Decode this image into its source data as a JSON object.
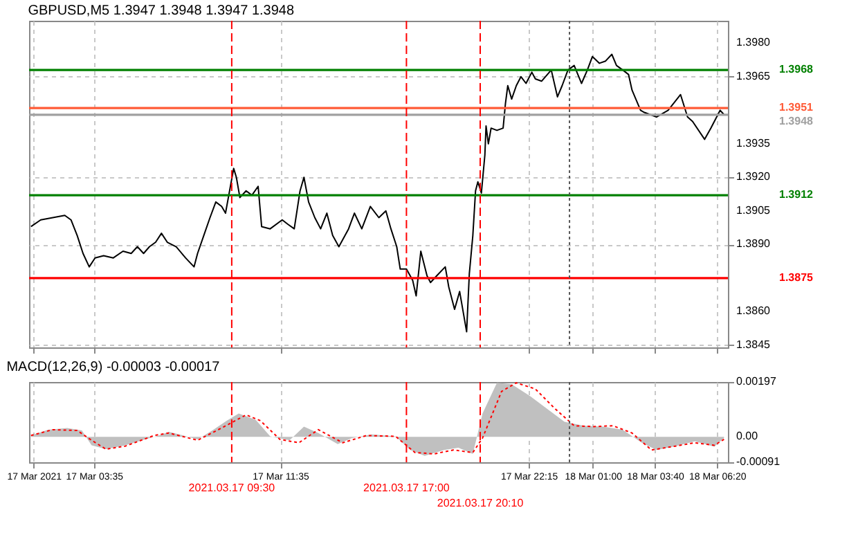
{
  "chart_data": [
    {
      "type": "line",
      "title": "GBPUSD,M5 1.3947 1.3948 1.3947 1.3948",
      "xlim": [
        "2021-03-17T00:48",
        "2021-03-18T06:48"
      ],
      "xticks": [
        {
          "value": "2021-03-17T01:00",
          "label": null
        },
        {
          "value": "2021-03-17T03:35",
          "label": null
        },
        {
          "value": "2021-03-17T11:35",
          "label": null
        },
        {
          "value": "2021-03-17T22:15",
          "label": null
        },
        {
          "value": "2021-03-18T01:00",
          "label": null
        },
        {
          "value": "2021-03-18T03:40",
          "label": null
        },
        {
          "value": "2021-03-18T06:20",
          "label": null
        }
      ],
      "ylim": [
        1.3844,
        1.399
      ],
      "yticks": [
        {
          "value": 1.398,
          "label": "1.3980"
        },
        {
          "value": 1.3965,
          "label": "1.3965"
        },
        {
          "value": 1.3935,
          "label": "1.3935"
        },
        {
          "value": 1.392,
          "label": "1.3920"
        },
        {
          "value": 1.3905,
          "label": "1.3905"
        },
        {
          "value": 1.389,
          "label": "1.3890"
        },
        {
          "value": 1.386,
          "label": "1.3860"
        },
        {
          "value": 1.3845,
          "label": "1.3845"
        }
      ],
      "grid": true,
      "tick_labels": "y",
      "ref_lines": [
        {
          "axis": "y",
          "value": 1.3968,
          "label": "1.3968",
          "color": "#008000",
          "line_style": "solid"
        },
        {
          "axis": "y",
          "value": 1.3951,
          "label": "1.3951",
          "color": "#ff5a36",
          "line_style": "solid"
        },
        {
          "axis": "y",
          "value": 1.3948,
          "label": "1.3948",
          "color": "#a0a0a0",
          "line_style": "solid"
        },
        {
          "axis": "y",
          "value": 1.3912,
          "label": "1.3912",
          "color": "#008000",
          "line_style": "solid"
        },
        {
          "axis": "y",
          "value": 1.3875,
          "label": "1.3875",
          "color": "#ff0000",
          "line_style": "solid"
        },
        {
          "axis": "x",
          "value": "2021-03-17T09:30",
          "color": "#ff0000",
          "line_style": "dashed"
        },
        {
          "axis": "x",
          "value": "2021-03-17T17:00",
          "color": "#ff0000",
          "line_style": "dashed"
        },
        {
          "axis": "x",
          "value": "2021-03-17T20:10",
          "color": "#ff0000",
          "line_style": "dashed"
        },
        {
          "axis": "x",
          "value": "2021-03-18T00:00",
          "color": "#555555",
          "line_style": "dotted"
        }
      ],
      "series": [
        {
          "color": "#000000",
          "x": [
            "2021-03-17T00:53",
            "2021-03-17T01:18",
            "2021-03-17T01:49",
            "2021-03-17T02:20",
            "2021-03-17T02:36",
            "2021-03-17T02:52",
            "2021-03-17T03:07",
            "2021-03-17T03:23",
            "2021-03-17T03:38",
            "2021-03-17T04:00",
            "2021-03-17T04:25",
            "2021-03-17T04:50",
            "2021-03-17T05:11",
            "2021-03-17T05:27",
            "2021-03-17T05:43",
            "2021-03-17T05:58",
            "2021-03-17T06:14",
            "2021-03-17T06:29",
            "2021-03-17T06:44",
            "2021-03-17T07:07",
            "2021-03-17T07:31",
            "2021-03-17T07:53",
            "2021-03-17T08:02",
            "2021-03-17T08:18",
            "2021-03-17T08:34",
            "2021-03-17T08:49",
            "2021-03-17T09:04",
            "2021-03-17T09:14",
            "2021-03-17T09:35",
            "2021-03-17T09:42",
            "2021-03-17T09:51",
            "2021-03-17T10:07",
            "2021-03-17T10:22",
            "2021-03-17T10:38",
            "2021-03-17T10:47",
            "2021-03-17T11:09",
            "2021-03-17T11:40",
            "2021-03-17T11:55",
            "2021-03-17T12:11",
            "2021-03-17T12:26",
            "2021-03-17T12:36",
            "2021-03-17T12:48",
            "2021-03-17T13:04",
            "2021-03-17T13:19",
            "2021-03-17T13:35",
            "2021-03-17T13:50",
            "2021-03-17T14:06",
            "2021-03-17T14:31",
            "2021-03-17T14:46",
            "2021-03-17T15:05",
            "2021-03-17T15:27",
            "2021-03-17T15:49",
            "2021-03-17T16:07",
            "2021-03-17T16:20",
            "2021-03-17T16:35",
            "2021-03-17T16:44",
            "2021-03-17T17:00",
            "2021-03-17T17:16",
            "2021-03-17T17:25",
            "2021-03-17T17:37",
            "2021-03-17T17:53",
            "2021-03-17T18:02",
            "2021-03-17T18:18",
            "2021-03-17T18:40",
            "2021-03-17T18:49",
            "2021-03-17T19:04",
            "2021-03-17T19:17",
            "2021-03-17T19:35",
            "2021-03-17T19:42",
            "2021-03-17T19:51",
            "2021-03-17T19:58",
            "2021-03-17T20:04",
            "2021-03-17T20:13",
            "2021-03-17T20:22",
            "2021-03-17T20:25",
            "2021-03-17T20:31",
            "2021-03-17T20:38",
            "2021-03-17T20:53",
            "2021-03-17T21:09",
            "2021-03-17T21:15",
            "2021-03-17T21:21",
            "2021-03-17T21:31",
            "2021-03-17T21:43",
            "2021-03-17T21:55",
            "2021-03-17T22:08",
            "2021-03-17T22:23",
            "2021-03-17T22:32",
            "2021-03-17T22:48",
            "2021-03-17T23:13",
            "2021-03-17T23:29",
            "2021-03-17T23:41",
            "2021-03-17T23:56",
            "2021-03-18T00:12",
            "2021-03-18T00:31",
            "2021-03-18T00:46",
            "2021-03-18T00:59",
            "2021-03-18T01:17",
            "2021-03-18T01:33",
            "2021-03-18T01:49",
            "2021-03-18T02:01",
            "2021-03-18T02:17",
            "2021-03-18T02:32",
            "2021-03-18T02:41",
            "2021-03-18T03:03",
            "2021-03-18T03:13",
            "2021-03-18T03:44",
            "2021-03-18T04:14",
            "2021-03-18T04:46",
            "2021-03-18T05:04",
            "2021-03-18T05:17",
            "2021-03-18T05:48",
            "2021-03-18T06:04",
            "2021-03-18T06:28",
            "2021-03-18T06:38"
          ],
          "values": [
            1.3898,
            1.3901,
            1.3902,
            1.3903,
            1.3901,
            1.3894,
            1.3886,
            1.388,
            1.3884,
            1.3885,
            1.3884,
            1.3887,
            1.3886,
            1.3889,
            1.3886,
            1.3889,
            1.3891,
            1.3895,
            1.3891,
            1.3889,
            1.3884,
            1.388,
            1.3886,
            1.3894,
            1.3902,
            1.3909,
            1.3907,
            1.3904,
            1.3924,
            1.392,
            1.3911,
            1.3914,
            1.3912,
            1.3916,
            1.3898,
            1.3897,
            1.3901,
            1.3899,
            1.3897,
            1.3914,
            1.392,
            1.3909,
            1.3902,
            1.3897,
            1.3904,
            1.3894,
            1.3889,
            1.3897,
            1.3904,
            1.3897,
            1.3907,
            1.3902,
            1.3905,
            1.3897,
            1.3889,
            1.3879,
            1.3879,
            1.3874,
            1.3867,
            1.3887,
            1.3876,
            1.3873,
            1.3876,
            1.388,
            1.3871,
            1.3861,
            1.3869,
            1.3851,
            1.3877,
            1.3894,
            1.3914,
            1.3918,
            1.3913,
            1.393,
            1.3943,
            1.3935,
            1.3942,
            1.3941,
            1.3942,
            1.3953,
            1.3961,
            1.3955,
            1.3961,
            1.3965,
            1.3962,
            1.3967,
            1.3964,
            1.3963,
            1.3968,
            1.3956,
            1.3961,
            1.3968,
            1.397,
            1.3962,
            1.3968,
            1.3974,
            1.3971,
            1.3972,
            1.3975,
            1.397,
            1.3968,
            1.3966,
            1.3959,
            1.395,
            1.3949,
            1.3947,
            1.395,
            1.3957,
            1.3947,
            1.3945,
            1.3937,
            1.3942,
            1.395,
            1.3948
          ]
        }
      ]
    },
    {
      "type": "area",
      "title": "MACD(12,26,9) -0.00003 -0.00017",
      "xlim": [
        "2021-03-17T00:48",
        "2021-03-18T06:48"
      ],
      "xticks": [
        {
          "value": "2021-03-17T01:00",
          "label": "17 Mar 2021"
        },
        {
          "value": "2021-03-17T03:35",
          "label": "17 Mar 03:35"
        },
        {
          "value": "2021-03-17T11:35",
          "label": "17 Mar 11:35"
        },
        {
          "value": "2021-03-17T22:15",
          "label": "17 Mar 22:15"
        },
        {
          "value": "2021-03-18T01:00",
          "label": "18 Mar 01:00"
        },
        {
          "value": "2021-03-18T03:40",
          "label": "18 Mar 03:40"
        },
        {
          "value": "2021-03-18T06:20",
          "label": "18 Mar 06:20"
        }
      ],
      "ylim": [
        -0.00091,
        0.00197
      ],
      "yticks": [
        {
          "value": 0.00197,
          "label": "0.00197"
        },
        {
          "value": 0,
          "label": "0.00"
        },
        {
          "value": -0.00091,
          "label": "-0.00091"
        }
      ],
      "grid": "x",
      "ref_lines": [
        {
          "axis": "x",
          "value": "2021-03-17T09:30",
          "label": "2021.03.17 09:30",
          "color": "#ff0000",
          "line_style": "dashed"
        },
        {
          "axis": "x",
          "value": "2021-03-17T17:00",
          "label": "2021.03.17 17:00",
          "color": "#ff0000",
          "line_style": "dashed"
        },
        {
          "axis": "x",
          "value": "2021-03-17T20:10",
          "label": "2021.03.17 20:10",
          "color": "#ff0000",
          "line_style": "dashed"
        },
        {
          "axis": "x",
          "value": "2021-03-18T00:00",
          "color": "#555555",
          "line_style": "dotted"
        }
      ],
      "series": [
        {
          "color": "#c0c0c0",
          "x": [
            "2021-03-17T00:53",
            "2021-03-17T01:37",
            "2021-03-17T02:26",
            "2021-03-17T03:04",
            "2021-03-17T03:29",
            "2021-03-17T04:06",
            "2021-03-17T04:56",
            "2021-03-17T05:46",
            "2021-03-17T06:23",
            "2021-03-17T06:48",
            "2021-03-17T07:25",
            "2021-03-17T08:02",
            "2021-03-17T08:40",
            "2021-03-17T09:17",
            "2021-03-17T09:48",
            "2021-03-17T10:32",
            "2021-03-17T11:09",
            "2021-03-17T11:59",
            "2021-03-17T12:36",
            "2021-03-17T13:13",
            "2021-03-17T14:03",
            "2021-03-17T14:40",
            "2021-03-17T15:30",
            "2021-03-17T16:32",
            "2021-03-17T17:10",
            "2021-03-17T17:47",
            "2021-03-17T18:37",
            "2021-03-17T19:14",
            "2021-03-17T19:51",
            "2021-03-17T20:16",
            "2021-03-17T20:53",
            "2021-03-17T21:31",
            "2021-03-17T22:20",
            "2021-03-17T23:10",
            "2021-03-17T23:47",
            "2021-03-18T00:37",
            "2021-03-18T01:27",
            "2021-03-18T02:17",
            "2021-03-18T03:06",
            "2021-03-18T03:44",
            "2021-03-18T04:33",
            "2021-03-18T05:23",
            "2021-03-18T06:13",
            "2021-03-18T06:38"
          ],
          "values": [
            5e-05,
            0.00026,
            0.00032,
            0.00023,
            -0.0003,
            -0.00044,
            -0.0003,
            -9e-05,
            5e-05,
            0.00018,
            5e-05,
            -9e-05,
            0.00023,
            0.00058,
            0.00084,
            0.00061,
            2e-05,
            -0.00012,
            0.00037,
            0.00014,
            -0.00026,
            -4e-05,
            9e-05,
            2e-05,
            -0.00047,
            -0.00068,
            -0.00047,
            -0.00039,
            -0.00061,
            0.00084,
            0.00194,
            0.00189,
            0.00145,
            0.00093,
            0.00054,
            0.0004,
            0.00037,
            0.00026,
            -0.00021,
            -0.00047,
            -0.00033,
            -0.00016,
            -0.00035,
            -4e-05
          ]
        },
        {
          "type": "line",
          "color": "#ff0000",
          "line_style": "dotted",
          "x": [
            "2021-03-17T00:53",
            "2021-03-17T01:49",
            "2021-03-17T02:52",
            "2021-03-17T03:29",
            "2021-03-17T04:06",
            "2021-03-17T04:56",
            "2021-03-17T06:10",
            "2021-03-17T06:48",
            "2021-03-17T08:02",
            "2021-03-17T09:04",
            "2021-03-17T10:07",
            "2021-03-17T10:44",
            "2021-03-17T11:34",
            "2021-03-17T12:23",
            "2021-03-17T13:13",
            "2021-03-17T14:16",
            "2021-03-17T15:17",
            "2021-03-17T16:32",
            "2021-03-17T17:22",
            "2021-03-17T18:11",
            "2021-03-17T19:01",
            "2021-03-17T19:51",
            "2021-03-17T20:16",
            "2021-03-17T21:05",
            "2021-03-17T21:43",
            "2021-03-17T22:32",
            "2021-03-17T23:22",
            "2021-03-18T00:12",
            "2021-03-18T01:02",
            "2021-03-18T01:52",
            "2021-03-18T02:41",
            "2021-03-18T03:31",
            "2021-03-18T04:33",
            "2021-03-18T05:23",
            "2021-03-18T06:13",
            "2021-03-18T06:38"
          ],
          "values": [
            5e-05,
            0.00026,
            0.00023,
            -0.00012,
            -0.00044,
            -0.00033,
            5e-05,
            0.00014,
            -0.00012,
            0.00032,
            0.00079,
            0.00058,
            -9e-05,
            -0.00021,
            0.00026,
            -0.00021,
            5e-05,
            2e-05,
            -0.00056,
            -0.00061,
            -0.00047,
            -0.00056,
            -4e-05,
            0.00163,
            0.00194,
            0.00172,
            0.00102,
            0.0004,
            0.00037,
            0.0004,
            0.00014,
            -0.00047,
            -0.00033,
            -0.00021,
            -0.0003,
            -9e-05
          ]
        }
      ]
    }
  ]
}
